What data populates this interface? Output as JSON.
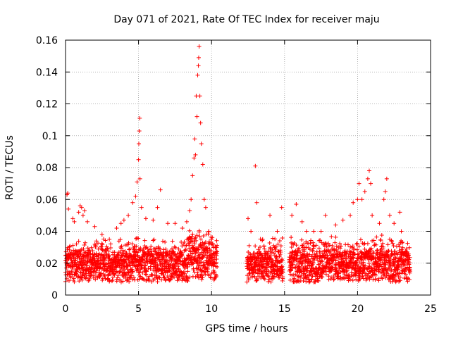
{
  "chart_data": {
    "type": "scatter",
    "title": "Day 071 of 2021, Rate Of TEC Index for receiver maju",
    "xlabel": "GPS time / hours",
    "ylabel": "ROTI / TECUs",
    "xlim": [
      0,
      25
    ],
    "ylim": [
      0,
      0.16
    ],
    "x_ticks": [
      "0",
      "5",
      "10",
      "15",
      "20",
      "25"
    ],
    "y_ticks": [
      "0",
      "0.02",
      "0.04",
      "0.06",
      "0.08",
      "0.1",
      "0.12",
      "0.14",
      "0.16"
    ],
    "grid": true,
    "marker": "+",
    "color": "#ff0000",
    "data_gaps_hours": [
      [
        10.4,
        12.4
      ],
      [
        14.9,
        15.3
      ]
    ],
    "series": [
      {
        "name": "ROTI",
        "points": [
          [
            0.1,
            0.063
          ],
          [
            0.15,
            0.064
          ],
          [
            0.2,
            0.054
          ],
          [
            0.5,
            0.048
          ],
          [
            0.6,
            0.046
          ],
          [
            0.9,
            0.052
          ],
          [
            1.0,
            0.056
          ],
          [
            1.1,
            0.055
          ],
          [
            1.2,
            0.05
          ],
          [
            1.3,
            0.053
          ],
          [
            1.5,
            0.046
          ],
          [
            2.0,
            0.043
          ],
          [
            2.5,
            0.038
          ],
          [
            3.0,
            0.035
          ],
          [
            3.5,
            0.042
          ],
          [
            3.8,
            0.045
          ],
          [
            4.0,
            0.047
          ],
          [
            4.3,
            0.05
          ],
          [
            4.6,
            0.058
          ],
          [
            4.8,
            0.062
          ],
          [
            4.9,
            0.071
          ],
          [
            5.0,
            0.085
          ],
          [
            5.02,
            0.095
          ],
          [
            5.05,
            0.103
          ],
          [
            5.08,
            0.111
          ],
          [
            5.1,
            0.073
          ],
          [
            5.2,
            0.055
          ],
          [
            5.5,
            0.048
          ],
          [
            6.0,
            0.047
          ],
          [
            6.3,
            0.055
          ],
          [
            6.5,
            0.066
          ],
          [
            7.0,
            0.045
          ],
          [
            7.5,
            0.045
          ],
          [
            8.0,
            0.042
          ],
          [
            8.3,
            0.046
          ],
          [
            8.5,
            0.053
          ],
          [
            8.6,
            0.06
          ],
          [
            8.7,
            0.075
          ],
          [
            8.8,
            0.086
          ],
          [
            8.85,
            0.098
          ],
          [
            8.9,
            0.088
          ],
          [
            8.95,
            0.125
          ],
          [
            9.0,
            0.112
          ],
          [
            9.05,
            0.138
          ],
          [
            9.1,
            0.144
          ],
          [
            9.12,
            0.149
          ],
          [
            9.15,
            0.156
          ],
          [
            9.2,
            0.125
          ],
          [
            9.25,
            0.108
          ],
          [
            9.3,
            0.095
          ],
          [
            9.4,
            0.082
          ],
          [
            9.5,
            0.06
          ],
          [
            9.6,
            0.055
          ],
          [
            9.8,
            0.04
          ],
          [
            10.0,
            0.035
          ],
          [
            12.5,
            0.048
          ],
          [
            12.7,
            0.04
          ],
          [
            13.0,
            0.081
          ],
          [
            13.1,
            0.058
          ],
          [
            13.5,
            0.035
          ],
          [
            14.0,
            0.05
          ],
          [
            14.5,
            0.04
          ],
          [
            14.8,
            0.055
          ],
          [
            15.5,
            0.05
          ],
          [
            15.8,
            0.057
          ],
          [
            16.2,
            0.046
          ],
          [
            16.5,
            0.04
          ],
          [
            17.0,
            0.04
          ],
          [
            17.5,
            0.04
          ],
          [
            17.8,
            0.05
          ],
          [
            18.5,
            0.044
          ],
          [
            19.0,
            0.047
          ],
          [
            19.5,
            0.05
          ],
          [
            19.7,
            0.058
          ],
          [
            20.0,
            0.06
          ],
          [
            20.1,
            0.07
          ],
          [
            20.3,
            0.06
          ],
          [
            20.5,
            0.065
          ],
          [
            20.7,
            0.073
          ],
          [
            20.8,
            0.078
          ],
          [
            20.9,
            0.07
          ],
          [
            21.0,
            0.05
          ],
          [
            21.5,
            0.045
          ],
          [
            21.8,
            0.06
          ],
          [
            21.9,
            0.065
          ],
          [
            22.0,
            0.073
          ],
          [
            22.2,
            0.05
          ],
          [
            22.5,
            0.045
          ],
          [
            22.9,
            0.052
          ],
          [
            23.0,
            0.04
          ],
          [
            23.5,
            0.025
          ],
          [
            23.6,
            0.015
          ]
        ]
      }
    ]
  }
}
